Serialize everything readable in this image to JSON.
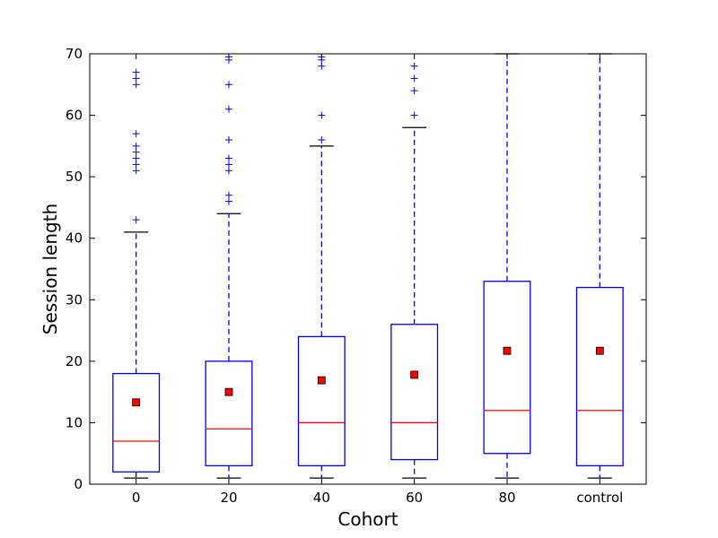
{
  "chart_data": {
    "type": "box",
    "title": "",
    "xlabel": "Cohort",
    "ylabel": "Session length",
    "ylim": [
      0,
      70
    ],
    "yticks": [
      0,
      10,
      20,
      30,
      40,
      50,
      60,
      70
    ],
    "grid": false,
    "categories": [
      "0",
      "20",
      "40",
      "60",
      "80",
      "control"
    ],
    "boxes": [
      {
        "category": "0",
        "whisker_low": 1,
        "q1": 2,
        "median": 7,
        "q3": 18,
        "whisker_high": 41,
        "mean": 13.3,
        "outliers": [
          43,
          51,
          52,
          53,
          54,
          55,
          57,
          65,
          66,
          67
        ]
      },
      {
        "category": "20",
        "whisker_low": 1,
        "q1": 3,
        "median": 9,
        "q3": 20,
        "whisker_high": 44,
        "mean": 15,
        "outliers": [
          46,
          47,
          51,
          52,
          53,
          56,
          61,
          65,
          69,
          69.5
        ]
      },
      {
        "category": "40",
        "whisker_low": 1,
        "q1": 3,
        "median": 10,
        "q3": 24,
        "whisker_high": 55,
        "mean": 16.9,
        "outliers": [
          56,
          60,
          68,
          69,
          69.5
        ]
      },
      {
        "category": "60",
        "whisker_low": 1,
        "q1": 4,
        "median": 10,
        "q3": 26,
        "whisker_high": 58,
        "mean": 17.8,
        "outliers": [
          60,
          64,
          66,
          68
        ]
      },
      {
        "category": "80",
        "whisker_low": 1,
        "q1": 5,
        "median": 12,
        "q3": 33,
        "whisker_high": 70,
        "mean": 21.7,
        "outliers": []
      },
      {
        "category": "control",
        "whisker_low": 1,
        "q1": 3,
        "median": 12,
        "q3": 32,
        "whisker_high": 70,
        "mean": 21.7,
        "outliers": []
      }
    ],
    "colors": {
      "box": "#0000ff",
      "median": "#ff0000",
      "mean_marker": "#ff0000",
      "cap": "#000000",
      "outlier": "#0000ff"
    }
  }
}
